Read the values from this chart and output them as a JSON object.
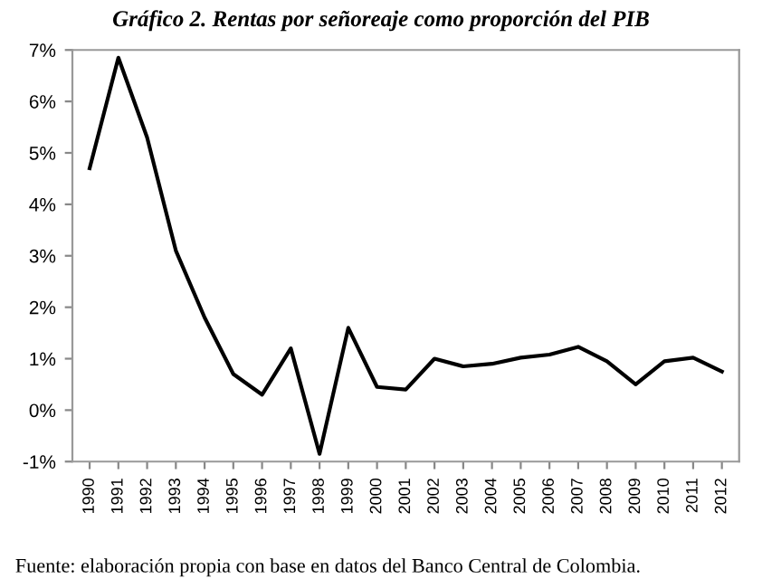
{
  "chart_data": {
    "type": "line",
    "title": "Gráfico 2. Rentas por señoreaje como proporción del PIB",
    "categories": [
      "1990",
      "1991",
      "1992",
      "1993",
      "1994",
      "1995",
      "1996",
      "1997",
      "1998",
      "1999",
      "2000",
      "2001",
      "2002",
      "2003",
      "2004",
      "2005",
      "2006",
      "2007",
      "2008",
      "2009",
      "2010",
      "2011",
      "2012"
    ],
    "series": [
      {
        "color": "#000000",
        "values": [
          4.7,
          6.85,
          5.3,
          3.1,
          1.8,
          0.7,
          0.3,
          1.2,
          -0.85,
          1.6,
          0.45,
          0.4,
          1.0,
          0.85,
          0.9,
          1.02,
          1.08,
          1.23,
          0.95,
          0.5,
          0.95,
          1.02,
          0.75
        ]
      }
    ],
    "ylim": [
      -1,
      7
    ],
    "yticks": [
      {
        "value": -1,
        "label": "-1%"
      },
      {
        "value": 0,
        "label": "0%"
      },
      {
        "value": 1,
        "label": "1%"
      },
      {
        "value": 2,
        "label": "2%"
      },
      {
        "value": 3,
        "label": "3%"
      },
      {
        "value": 4,
        "label": "4%"
      },
      {
        "value": 5,
        "label": "5%"
      },
      {
        "value": 6,
        "label": "6%"
      },
      {
        "value": 7,
        "label": "7%"
      }
    ],
    "grid": false,
    "marker": "none",
    "line_style": "solid",
    "annotations": [
      "Fuente: elaboración propia con base en datos del Banco Central de Colombia."
    ]
  }
}
